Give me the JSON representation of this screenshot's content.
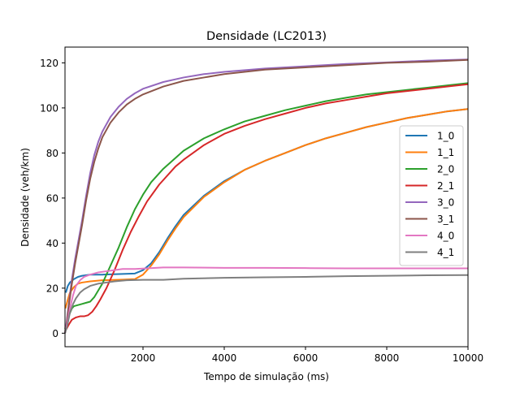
{
  "chart_data": {
    "type": "line",
    "title": "Densidade (LC2013)",
    "xlabel": "Tempo de simulação (ms)",
    "ylabel": "Densidade (veh/km)",
    "xlim": [
      80,
      10000
    ],
    "ylim": [
      -6,
      127
    ],
    "xticks": [
      2000,
      4000,
      6000,
      8000,
      10000
    ],
    "yticks": [
      0,
      20,
      40,
      60,
      80,
      100,
      120
    ],
    "grid": false,
    "legend": "right",
    "series": [
      {
        "name": "1_0",
        "color": "#1f77b4",
        "points": [
          [
            100,
            18
          ],
          [
            150,
            21
          ],
          [
            200,
            22.5
          ],
          [
            300,
            24
          ],
          [
            400,
            25
          ],
          [
            500,
            25.5
          ],
          [
            700,
            26
          ],
          [
            1000,
            26
          ],
          [
            1500,
            26.3
          ],
          [
            1800,
            26.5
          ],
          [
            2000,
            28
          ],
          [
            2200,
            31
          ],
          [
            2400,
            36
          ],
          [
            2600,
            42
          ],
          [
            2800,
            47.5
          ],
          [
            3000,
            52.5
          ],
          [
            3500,
            61
          ],
          [
            4000,
            67.5
          ],
          [
            4500,
            72.5
          ],
          [
            5000,
            76.5
          ],
          [
            5500,
            80
          ],
          [
            6000,
            83.5
          ],
          [
            6500,
            86.5
          ],
          [
            7000,
            89
          ],
          [
            7500,
            91.5
          ],
          [
            8000,
            93.5
          ],
          [
            8500,
            95.5
          ],
          [
            9000,
            97
          ],
          [
            9500,
            98.5
          ],
          [
            10000,
            99.5
          ]
        ]
      },
      {
        "name": "1_1",
        "color": "#ff7f0e",
        "points": [
          [
            90,
            11
          ],
          [
            150,
            15
          ],
          [
            200,
            18
          ],
          [
            300,
            20.5
          ],
          [
            400,
            22
          ],
          [
            500,
            22.5
          ],
          [
            700,
            23
          ],
          [
            1000,
            23.5
          ],
          [
            1500,
            23.8
          ],
          [
            1800,
            24
          ],
          [
            2000,
            26
          ],
          [
            2200,
            30
          ],
          [
            2400,
            35
          ],
          [
            2600,
            41
          ],
          [
            2800,
            46.5
          ],
          [
            3000,
            51.5
          ],
          [
            3500,
            60.5
          ],
          [
            4000,
            67
          ],
          [
            4500,
            72.5
          ],
          [
            5000,
            76.5
          ],
          [
            5500,
            80
          ],
          [
            6000,
            83.5
          ],
          [
            6500,
            86.5
          ],
          [
            7000,
            89
          ],
          [
            7500,
            91.5
          ],
          [
            8000,
            93.5
          ],
          [
            8500,
            95.5
          ],
          [
            9000,
            97
          ],
          [
            9500,
            98.5
          ],
          [
            10000,
            99.5
          ]
        ]
      },
      {
        "name": "2_0",
        "color": "#2ca02c",
        "points": [
          [
            80,
            2
          ],
          [
            120,
            4
          ],
          [
            180,
            8
          ],
          [
            250,
            11
          ],
          [
            300,
            12
          ],
          [
            400,
            12.5
          ],
          [
            500,
            13
          ],
          [
            600,
            13.5
          ],
          [
            700,
            14
          ],
          [
            800,
            16
          ],
          [
            900,
            19
          ],
          [
            1000,
            22
          ],
          [
            1200,
            30
          ],
          [
            1400,
            38
          ],
          [
            1600,
            47
          ],
          [
            1800,
            55
          ],
          [
            2000,
            61.5
          ],
          [
            2200,
            67
          ],
          [
            2500,
            73
          ],
          [
            3000,
            81
          ],
          [
            3500,
            86.5
          ],
          [
            4000,
            90.5
          ],
          [
            4500,
            94
          ],
          [
            5000,
            96.5
          ],
          [
            5500,
            99
          ],
          [
            6000,
            101
          ],
          [
            6500,
            103
          ],
          [
            7000,
            104.5
          ],
          [
            7500,
            106
          ],
          [
            8000,
            107
          ],
          [
            8500,
            108
          ],
          [
            9000,
            109
          ],
          [
            9500,
            110
          ],
          [
            10000,
            111
          ]
        ]
      },
      {
        "name": "2_1",
        "color": "#d62728",
        "points": [
          [
            80,
            1
          ],
          [
            120,
            2
          ],
          [
            180,
            4
          ],
          [
            250,
            6
          ],
          [
            350,
            7
          ],
          [
            450,
            7.5
          ],
          [
            550,
            7.5
          ],
          [
            650,
            8
          ],
          [
            750,
            9.5
          ],
          [
            850,
            12
          ],
          [
            950,
            15
          ],
          [
            1100,
            20
          ],
          [
            1300,
            28
          ],
          [
            1500,
            37
          ],
          [
            1700,
            45
          ],
          [
            1900,
            52
          ],
          [
            2100,
            58.5
          ],
          [
            2400,
            66
          ],
          [
            2800,
            74
          ],
          [
            3000,
            77
          ],
          [
            3500,
            83.5
          ],
          [
            4000,
            88.5
          ],
          [
            4500,
            92
          ],
          [
            5000,
            95
          ],
          [
            5500,
            97.5
          ],
          [
            6000,
            100
          ],
          [
            6500,
            102
          ],
          [
            7000,
            103.5
          ],
          [
            7500,
            105
          ],
          [
            8000,
            106.5
          ],
          [
            8500,
            107.5
          ],
          [
            9000,
            108.5
          ],
          [
            9500,
            109.5
          ],
          [
            10000,
            110.5
          ]
        ]
      },
      {
        "name": "3_0",
        "color": "#9467bd",
        "points": [
          [
            80,
            0
          ],
          [
            120,
            5
          ],
          [
            180,
            14
          ],
          [
            250,
            24
          ],
          [
            330,
            33
          ],
          [
            400,
            40
          ],
          [
            500,
            50
          ],
          [
            600,
            61
          ],
          [
            700,
            71
          ],
          [
            800,
            79
          ],
          [
            900,
            85
          ],
          [
            1000,
            89.5
          ],
          [
            1200,
            96
          ],
          [
            1400,
            100.5
          ],
          [
            1600,
            104
          ],
          [
            1800,
            106.5
          ],
          [
            2000,
            108.5
          ],
          [
            2500,
            111.5
          ],
          [
            3000,
            113.5
          ],
          [
            3500,
            115
          ],
          [
            4000,
            116
          ],
          [
            5000,
            117.5
          ],
          [
            6000,
            118.5
          ],
          [
            7000,
            119.5
          ],
          [
            8000,
            120.2
          ],
          [
            9000,
            121
          ],
          [
            10000,
            121.5
          ]
        ]
      },
      {
        "name": "3_1",
        "color": "#8c564b",
        "points": [
          [
            80,
            0
          ],
          [
            120,
            4
          ],
          [
            180,
            13
          ],
          [
            250,
            22
          ],
          [
            330,
            31
          ],
          [
            400,
            38
          ],
          [
            500,
            48
          ],
          [
            600,
            59
          ],
          [
            700,
            68.5
          ],
          [
            800,
            76
          ],
          [
            900,
            82
          ],
          [
            1000,
            87
          ],
          [
            1200,
            93.5
          ],
          [
            1400,
            98
          ],
          [
            1600,
            101.5
          ],
          [
            1800,
            104
          ],
          [
            2000,
            106
          ],
          [
            2500,
            109.5
          ],
          [
            3000,
            112
          ],
          [
            3500,
            113.5
          ],
          [
            4000,
            115
          ],
          [
            5000,
            117
          ],
          [
            6000,
            118
          ],
          [
            7000,
            119
          ],
          [
            8000,
            120
          ],
          [
            9000,
            120.5
          ],
          [
            10000,
            121.3
          ]
        ]
      },
      {
        "name": "4_0",
        "color": "#e377c2",
        "points": [
          [
            80,
            0
          ],
          [
            130,
            4
          ],
          [
            200,
            11
          ],
          [
            280,
            17
          ],
          [
            350,
            21
          ],
          [
            450,
            23.5
          ],
          [
            550,
            25
          ],
          [
            700,
            26
          ],
          [
            900,
            27
          ],
          [
            1100,
            27.5
          ],
          [
            1300,
            28
          ],
          [
            1500,
            28.5
          ],
          [
            1800,
            28.5
          ],
          [
            2000,
            28.7
          ],
          [
            2500,
            29.2
          ],
          [
            3000,
            29.2
          ],
          [
            4000,
            29
          ],
          [
            5000,
            29
          ],
          [
            6000,
            28.9
          ],
          [
            7000,
            28.8
          ],
          [
            8000,
            28.8
          ],
          [
            9000,
            28.8
          ],
          [
            10000,
            28.8
          ]
        ]
      },
      {
        "name": "4_1",
        "color": "#7f7f7f",
        "points": [
          [
            80,
            0
          ],
          [
            130,
            3
          ],
          [
            200,
            9
          ],
          [
            280,
            13
          ],
          [
            350,
            15.5
          ],
          [
            450,
            18
          ],
          [
            550,
            19.5
          ],
          [
            700,
            21
          ],
          [
            900,
            22
          ],
          [
            1100,
            22.5
          ],
          [
            1300,
            23
          ],
          [
            1600,
            23.5
          ],
          [
            2000,
            23.7
          ],
          [
            2500,
            23.7
          ],
          [
            3000,
            24.2
          ],
          [
            4000,
            24.6
          ],
          [
            5000,
            24.8
          ],
          [
            6000,
            25
          ],
          [
            7000,
            25.3
          ],
          [
            8000,
            25.5
          ],
          [
            9000,
            25.7
          ],
          [
            10000,
            25.8
          ]
        ]
      }
    ]
  }
}
